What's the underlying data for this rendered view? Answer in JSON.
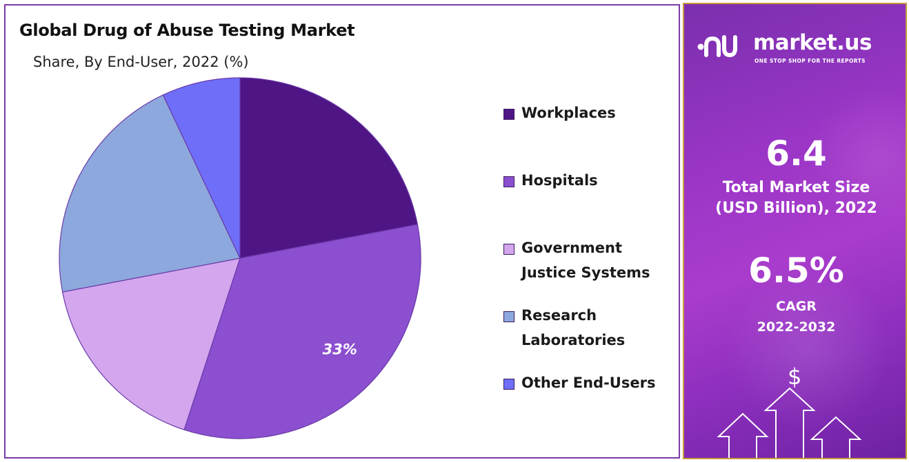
{
  "chart_data": {
    "type": "pie",
    "title": "Global Drug of Abuse Testing Market",
    "subtitle": "Share, By End-User, 2022 (%)",
    "categories": [
      "Workplaces",
      "Hospitals",
      "Government\nJustice Systems",
      "Research\nLaboratories",
      "Other End-Users"
    ],
    "values": [
      22,
      33,
      17,
      21,
      7
    ],
    "colors": [
      "#4f1585",
      "#8b4fd0",
      "#d3a6ee",
      "#8da8dc",
      "#6e6ef9"
    ],
    "data_labels": [
      "",
      "33%",
      "",
      "",
      ""
    ],
    "legend_position": "right"
  },
  "brand": {
    "name": "market.us",
    "tagline": "ONE STOP SHOP FOR THE REPORTS",
    "logo_icon": "market-us-logo-icon"
  },
  "stats": {
    "market_size_value": "6.4",
    "market_size_label": "Total Market Size\n(USD Billion), 2022",
    "cagr_value": "6.5%",
    "cagr_label": "CAGR\n2022-2032"
  },
  "decor": {
    "currency_symbol": "$"
  }
}
